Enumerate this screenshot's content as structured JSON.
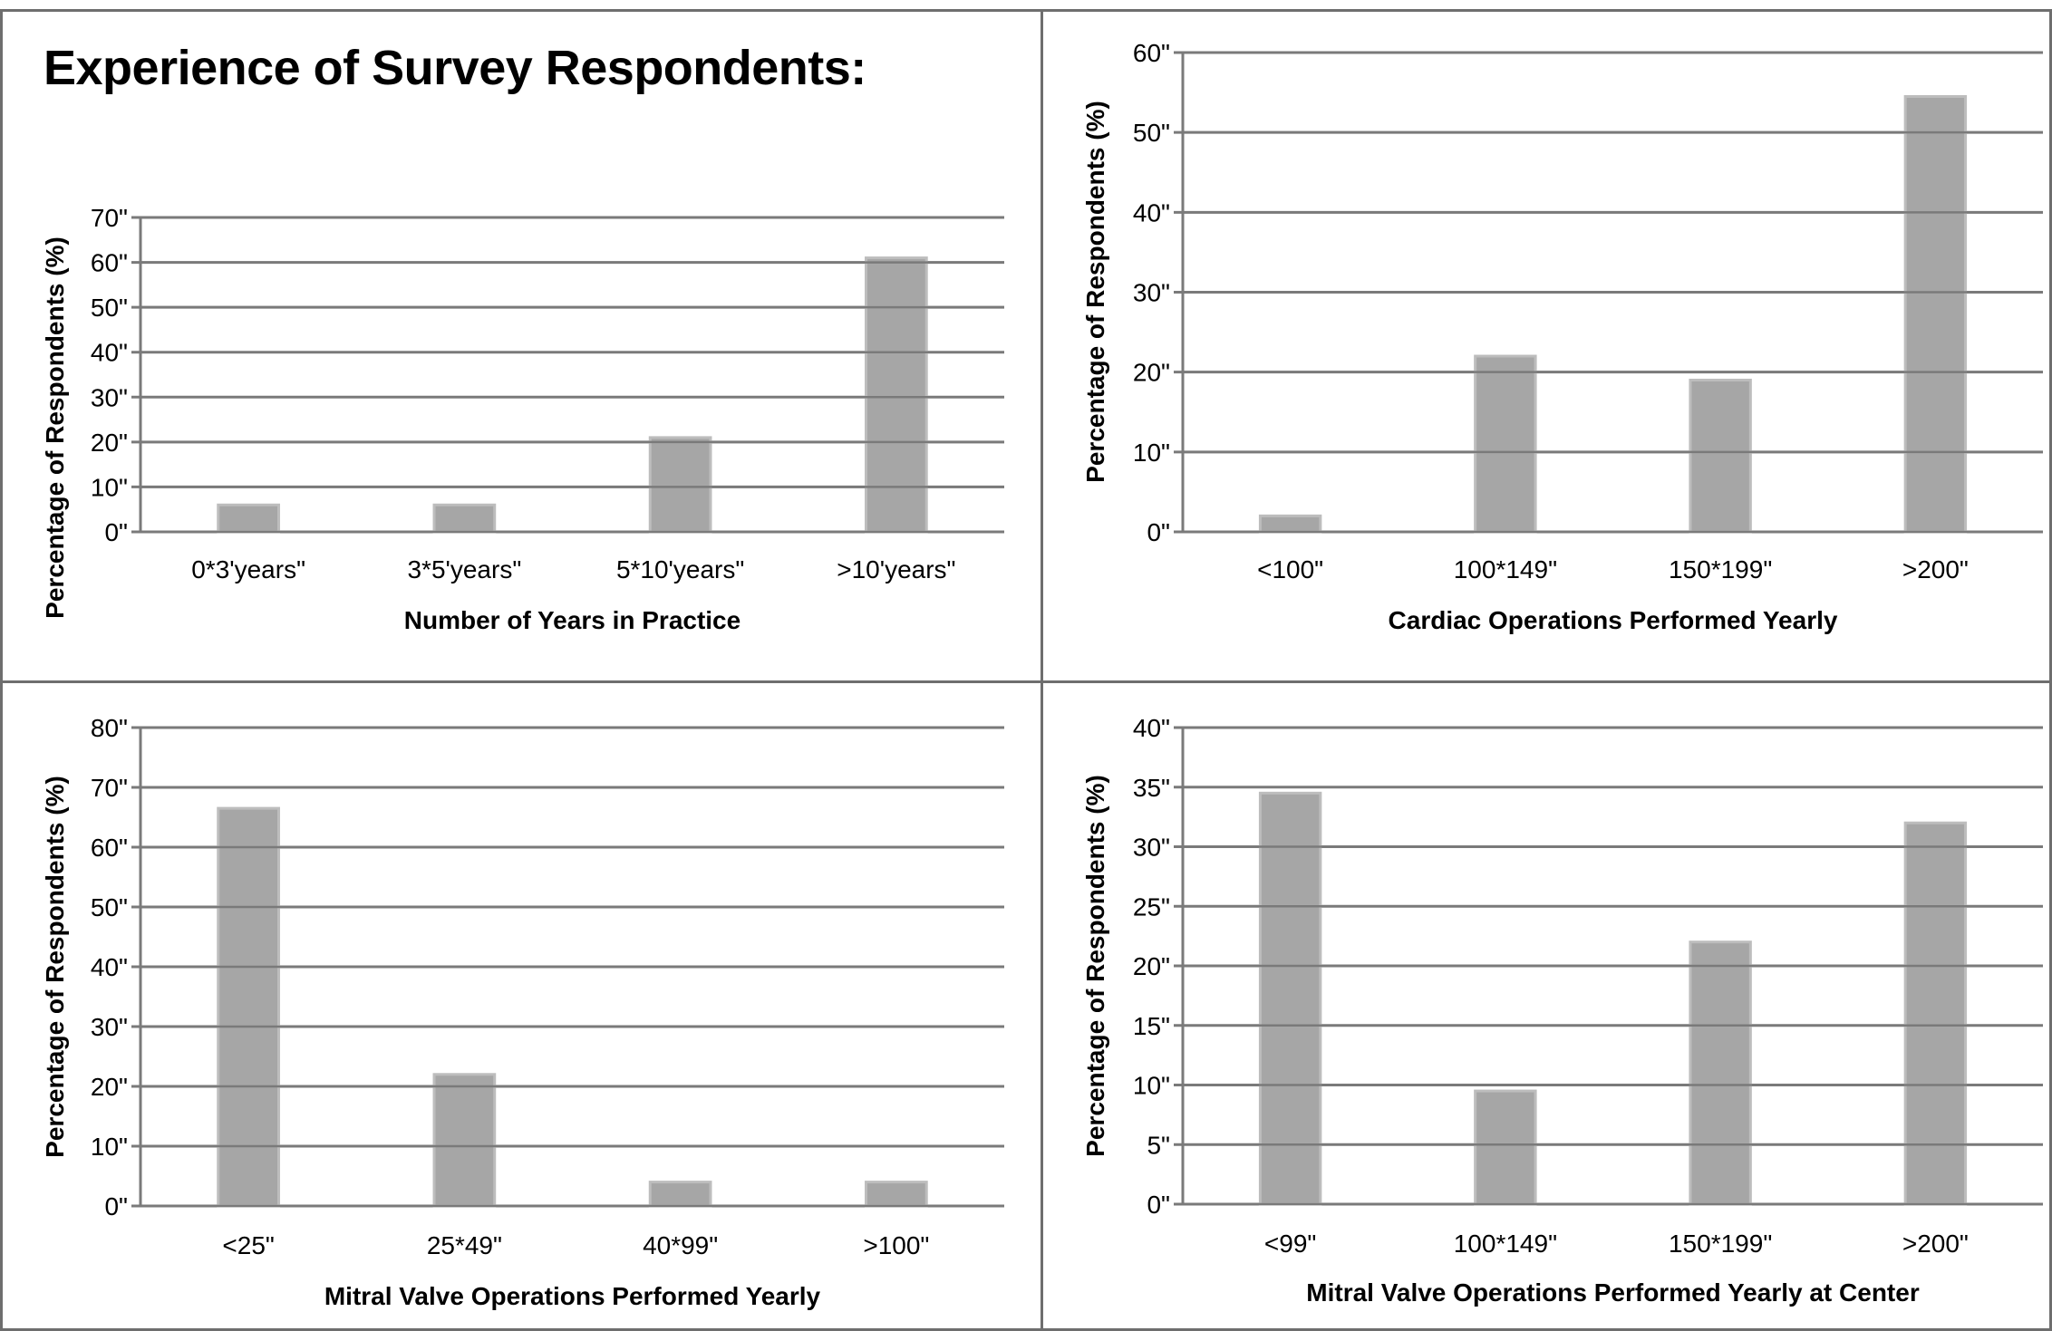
{
  "page_title": "Experience of Survey Respondents:",
  "chart_data": [
    {
      "type": "bar",
      "title": "",
      "xlabel": "Number of Years in Practice",
      "ylabel": "Percentage of Respondents (%)",
      "categories": [
        "0*3'years\"",
        "3*5'years\"",
        "5*10'years\"",
        ">10'years\""
      ],
      "values": [
        6,
        6,
        21,
        61
      ],
      "ylim": [
        0,
        70
      ],
      "yticks": [
        "0\"",
        "10\"",
        "20\"",
        "30\"",
        "40\"",
        "50\"",
        "60\"",
        "70\""
      ],
      "grid": true,
      "bar_color": "#a6a6a6"
    },
    {
      "type": "bar",
      "title": "",
      "xlabel": "Cardiac Operations Performed Yearly",
      "ylabel": "Percentage of Respondents (%)",
      "categories": [
        "<100\"",
        "100*149\"",
        "150*199\"",
        ">200\""
      ],
      "values": [
        2,
        22,
        19,
        54.5
      ],
      "ylim": [
        0,
        60
      ],
      "yticks": [
        "0\"",
        "10\"",
        "20\"",
        "30\"",
        "40\"",
        "50\"",
        "60\""
      ],
      "grid": true,
      "bar_color": "#a6a6a6"
    },
    {
      "type": "bar",
      "title": "",
      "xlabel": "Mitral Valve Operations Performed Yearly",
      "ylabel": "Percentage of Respondents (%)",
      "categories": [
        "<25\"",
        "25*49\"",
        "40*99\"",
        ">100\""
      ],
      "values": [
        66.5,
        22,
        4,
        4
      ],
      "ylim": [
        0,
        80
      ],
      "yticks": [
        "0\"",
        "10\"",
        "20\"",
        "30\"",
        "40\"",
        "50\"",
        "60\"",
        "70\"",
        "80\""
      ],
      "grid": true,
      "bar_color": "#a6a6a6"
    },
    {
      "type": "bar",
      "title": "",
      "xlabel": "Mitral Valve Operations Performed Yearly at Center",
      "ylabel": "Percentage of Respondents (%)",
      "categories": [
        "<99\"",
        "100*149\"",
        "150*199\"",
        ">200\""
      ],
      "values": [
        34.5,
        9.5,
        22,
        32
      ],
      "ylim": [
        0,
        40
      ],
      "yticks": [
        "0\"",
        "5\"",
        "10\"",
        "15\"",
        "20\"",
        "25\"",
        "30\"",
        "35\"",
        "40\""
      ],
      "grid": true,
      "bar_color": "#a6a6a6"
    }
  ]
}
